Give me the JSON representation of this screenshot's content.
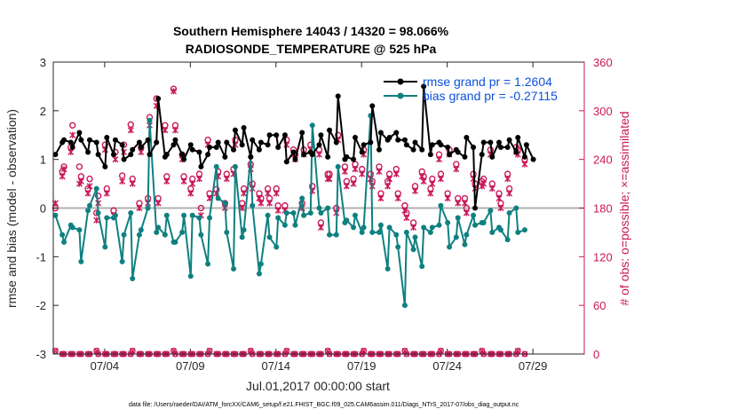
{
  "chart_data": {
    "type": "line",
    "title_lines": [
      "Southern Hemisphere 14043 / 14320 = 98.066%",
      "RADIOSONDE_TEMPERATURE @ 525 hPa"
    ],
    "xlabel": "Jul.01,2017 00:00:00 start",
    "ylabel_left": "rmse and bias (model - observation)",
    "ylabel_right": "# of obs: o=possible; ×=assimilated",
    "ylim_left": [
      -3,
      3
    ],
    "ylim_right": [
      0,
      360
    ],
    "yticks_left": [
      "-3",
      "-2",
      "-1",
      "0",
      "1",
      "2",
      "3"
    ],
    "yticks_right": [
      "0",
      "60",
      "120",
      "180",
      "240",
      "300",
      "360"
    ],
    "xlim_days": [
      1.0,
      32.0
    ],
    "xtick_days": [
      4,
      9,
      14,
      19,
      24,
      29
    ],
    "xtick_labels": [
      "07/04",
      "07/09",
      "07/14",
      "07/19",
      "07/24",
      "07/29"
    ],
    "zero_line": 0,
    "colors": {
      "rmse": "#000000",
      "bias": "#0f8080",
      "obs": "#c8195a",
      "legend_text": "#0a50dc"
    },
    "series": [
      {
        "name": "rmse grand pr = 1.2604",
        "axis": "left",
        "values": [
          1.1,
          1.35,
          1.4,
          1.35,
          1.25,
          1.55,
          1.4,
          1.15,
          1.4,
          1.35,
          1.1,
          0.85,
          1.45,
          1.1,
          1.4,
          1.3,
          1.0,
          1.1,
          1.2,
          1.35,
          1.25,
          1.4,
          1.1,
          1.35,
          2.25,
          1.05,
          1.1,
          1.3,
          1.4,
          1.1,
          1.0,
          1.3,
          1.2,
          1.15,
          0.85,
          1.1,
          1.25,
          1.25,
          1.35,
          1.05,
          1.35,
          1.2,
          1.6,
          1.3,
          1.65,
          1.05,
          1.4,
          1.2,
          1.35,
          1.3,
          1.5,
          1.5,
          1.25,
          1.5,
          0.95,
          1.15,
          1.0,
          1.55,
          1.1,
          1.15,
          1.1,
          1.3,
          1.5,
          1.05,
          1.6,
          1.35,
          2.3,
          1.0,
          1.05,
          1.0,
          1.45,
          1.15,
          1.3,
          1.35,
          2.1,
          1.2,
          1.55,
          1.4,
          1.45,
          1.55,
          1.4,
          1.4,
          1.3,
          1.2,
          1.35,
          1.2,
          2.5,
          1.1,
          1.3,
          1.35,
          1.3,
          1.25,
          1.1,
          1.2,
          1.15,
          1.05,
          1.45,
          1.25,
          0.0,
          1.1,
          1.35,
          1.35,
          1.05,
          1.35,
          1.25,
          1.25,
          1.4,
          1.15,
          1.45,
          1.05,
          1.3,
          1.0
        ]
      },
      {
        "name": "bias grand pr = -0.27115",
        "axis": "left",
        "values": [
          -0.15,
          -0.55,
          -0.7,
          -0.35,
          -0.4,
          -0.45,
          -1.1,
          -0.05,
          0.05,
          0.4,
          -0.1,
          -0.8,
          -0.2,
          -0.2,
          -0.15,
          -1.1,
          -0.55,
          -0.1,
          -1.45,
          -0.55,
          -0.45,
          0.0,
          1.8,
          -0.5,
          -0.4,
          -0.55,
          -0.15,
          -0.7,
          -0.7,
          -0.5,
          -0.15,
          -1.4,
          -0.15,
          -0.2,
          -0.55,
          -1.15,
          -0.2,
          0.85,
          0.2,
          0.1,
          -0.5,
          -1.25,
          0.85,
          -0.6,
          -0.45,
          1.05,
          0.05,
          -1.35,
          -1.15,
          -0.15,
          -0.6,
          -0.8,
          -0.2,
          -0.35,
          -0.1,
          -0.1,
          -0.35,
          0.2,
          -0.15,
          -0.1,
          1.7,
          0.0,
          -0.1,
          0.0,
          -0.55,
          -0.55,
          0.85,
          -0.3,
          -0.25,
          -0.4,
          -0.15,
          -0.5,
          -0.4,
          1.9,
          -0.5,
          -0.5,
          -0.35,
          -1.25,
          -0.4,
          -0.55,
          -0.8,
          -2.0,
          -0.5,
          -0.85,
          -0.6,
          -1.2,
          -0.4,
          -0.5,
          -0.4,
          -0.35,
          0.05,
          -0.3,
          -0.8,
          -0.6,
          -0.2,
          -0.75,
          -0.55,
          -0.15,
          -0.35,
          -0.3,
          -0.3,
          -0.05,
          -0.5,
          -0.4,
          -0.45,
          -0.65,
          -0.1,
          0.0,
          -0.5,
          -0.45
        ]
      },
      {
        "name": "possible",
        "axis": "right",
        "values": [
          180,
          225,
          231,
          255,
          282,
          231,
          219,
          204,
          216,
          174,
          195,
          258,
          204,
          177,
          249,
          220,
          258,
          283,
          216,
          186,
          255,
          192,
          292,
          315,
          192,
          282,
          219,
          327,
          282,
          246,
          219,
          204,
          216,
          222,
          180,
          264,
          198,
          203,
          225,
          186,
          222,
          228,
          264,
          186,
          204,
          234,
          210,
          198,
          192,
          204,
          192,
          204,
          183,
          183,
          264,
          252,
          246,
          186,
          252,
          258,
          207,
          252,
          162,
          222,
          222,
          180,
          270,
          231,
          213,
          216,
          234,
          228,
          252,
          222,
          213,
          231,
          198,
          213,
          222,
          228,
          198,
          183,
          174,
          162,
          207,
          225,
          219,
          204,
          216,
          246,
          222,
          198,
          252,
          234,
          192,
          192,
          180,
          222,
          210,
          213,
          216,
          252,
          210,
          198,
          186,
          222,
          204,
          255,
          252,
          240
        ]
      },
      {
        "name": "assimilated",
        "axis": "right",
        "values": [
          186,
          219,
          228,
          249,
          270,
          210,
          213,
          198,
          207,
          165,
          186,
          252,
          198,
          171,
          240,
          213,
          249,
          276,
          210,
          180,
          249,
          186,
          282,
          306,
          186,
          276,
          213,
          324,
          276,
          240,
          213,
          198,
          210,
          216,
          171,
          258,
          192,
          198,
          219,
          180,
          216,
          222,
          258,
          180,
          198,
          228,
          204,
          192,
          186,
          198,
          186,
          198,
          177,
          177,
          258,
          246,
          240,
          180,
          246,
          252,
          201,
          246,
          156,
          216,
          216,
          174,
          264,
          225,
          207,
          210,
          228,
          222,
          246,
          216,
          207,
          225,
          192,
          207,
          216,
          222,
          192,
          177,
          168,
          156,
          201,
          219,
          213,
          198,
          210,
          240,
          216,
          192,
          246,
          228,
          186,
          186,
          174,
          216,
          204,
          207,
          210,
          246,
          204,
          192,
          180,
          216,
          198,
          249,
          246,
          234
        ]
      }
    ],
    "footer": "data file: /Users/raeder/DAI/ATM_forcXX/CAM6_setup/f.e21.FHIST_BGC.f09_025.CAM6assim.011/Diags_NTrS_2017-07/obs_diag_output.nc"
  }
}
